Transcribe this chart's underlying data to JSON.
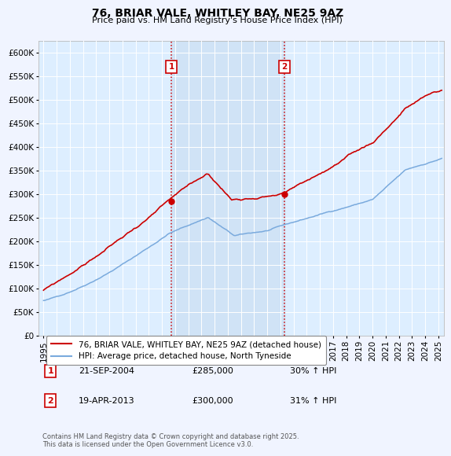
{
  "title": "76, BRIAR VALE, WHITLEY BAY, NE25 9AZ",
  "subtitle": "Price paid vs. HM Land Registry's House Price Index (HPI)",
  "ylim": [
    0,
    625000
  ],
  "ytick_vals": [
    0,
    50000,
    100000,
    150000,
    200000,
    250000,
    300000,
    350000,
    400000,
    450000,
    500000,
    550000,
    600000
  ],
  "ytick_labels": [
    "£0",
    "£50K",
    "£100K",
    "£150K",
    "£200K",
    "£250K",
    "£300K",
    "£350K",
    "£400K",
    "£450K",
    "£500K",
    "£550K",
    "£600K"
  ],
  "xlim_start": 1994.6,
  "xlim_end": 2025.4,
  "xtick_years": [
    1995,
    1996,
    1997,
    1998,
    1999,
    2000,
    2001,
    2002,
    2003,
    2004,
    2005,
    2006,
    2007,
    2008,
    2009,
    2010,
    2011,
    2012,
    2013,
    2014,
    2015,
    2016,
    2017,
    2018,
    2019,
    2020,
    2021,
    2022,
    2023,
    2024,
    2025
  ],
  "plot_bg_color": "#ddeeff",
  "grid_color": "#ffffff",
  "fig_bg_color": "#f0f4ff",
  "sale1_x": 2004.72,
  "sale1_y": 285000,
  "sale2_x": 2013.3,
  "sale2_y": 300000,
  "vline_color": "#cc0000",
  "property_line_color": "#cc0000",
  "hpi_line_color": "#7aaadd",
  "legend_label_property": "76, BRIAR VALE, WHITLEY BAY, NE25 9AZ (detached house)",
  "legend_label_hpi": "HPI: Average price, detached house, North Tyneside",
  "annotation1_date": "21-SEP-2004",
  "annotation1_price": "£285,000",
  "annotation1_hpi": "30% ↑ HPI",
  "annotation2_date": "19-APR-2013",
  "annotation2_price": "£300,000",
  "annotation2_hpi": "31% ↑ HPI",
  "footer": "Contains HM Land Registry data © Crown copyright and database right 2025.\nThis data is licensed under the Open Government Licence v3.0."
}
